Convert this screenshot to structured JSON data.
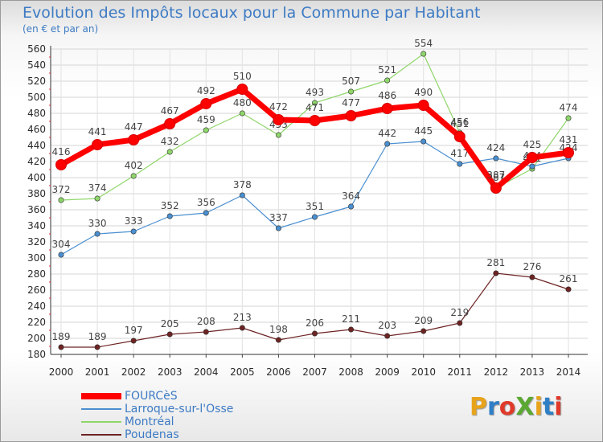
{
  "title": "Evolution des Impôts locaux pour la Commune par Habitant",
  "subtitle": "(en € et par an)",
  "brand": "ProXiti",
  "brand_colors": [
    "#e8a31c",
    "#2e7fc6",
    "#e03a2a",
    "#5aa832",
    "#e8a31c",
    "#2e7fc6",
    "#e03a2a"
  ],
  "chart_data": {
    "type": "line",
    "x": [
      "2000",
      "2001",
      "2002",
      "2003",
      "2004",
      "2005",
      "2006",
      "2007",
      "2008",
      "2009",
      "2010",
      "2011",
      "2012",
      "2013",
      "2014"
    ],
    "ylim": [
      180,
      560
    ],
    "yticks": [
      180,
      200,
      220,
      240,
      260,
      280,
      300,
      320,
      340,
      360,
      380,
      400,
      420,
      440,
      460,
      480,
      500,
      520,
      540,
      560
    ],
    "grid": true,
    "legend_position": "bottom-left",
    "series": [
      {
        "name": "FOURCèS",
        "color": "#ff0000",
        "values": [
          416,
          441,
          447,
          467,
          492,
          510,
          472,
          471,
          477,
          486,
          490,
          451,
          387,
          425,
          431
        ]
      },
      {
        "name": "Larroque-sur-l'Osse",
        "color": "#4a8fd0",
        "values": [
          304,
          330,
          333,
          352,
          356,
          378,
          337,
          351,
          364,
          442,
          445,
          417,
          424,
          414,
          424
        ]
      },
      {
        "name": "Montréal",
        "color": "#8fd66a",
        "values": [
          372,
          374,
          402,
          432,
          459,
          480,
          453,
          493,
          507,
          521,
          554,
          456,
          387,
          411,
          474
        ]
      },
      {
        "name": "Poudenas",
        "color": "#6e2323",
        "values": [
          189,
          189,
          197,
          205,
          208,
          213,
          198,
          206,
          211,
          203,
          209,
          219,
          281,
          276,
          261
        ]
      }
    ]
  }
}
